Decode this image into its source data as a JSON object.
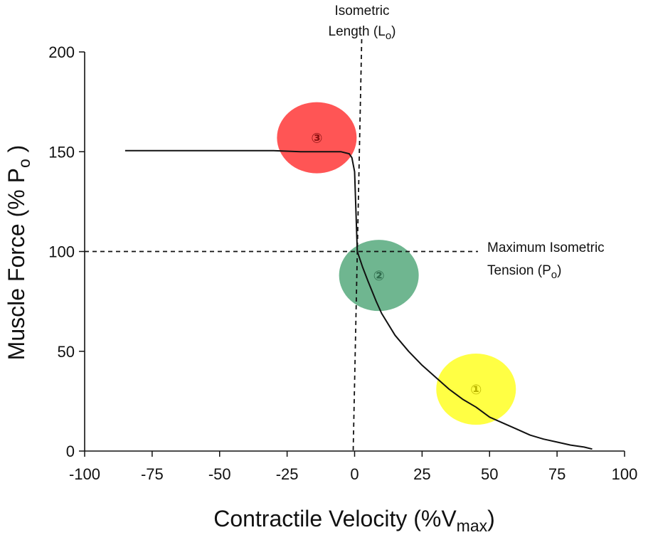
{
  "chart_data": {
    "type": "line",
    "title": "",
    "xlabel": "Contractile Velocity (%V",
    "xlabel_sub": "max",
    "xlabel_end": ")",
    "ylabel": "Muscle Force (% P",
    "ylabel_sub": "o",
    "ylabel_end": " )",
    "xlim": [
      -100,
      100
    ],
    "ylim": [
      0,
      200
    ],
    "xticks": [
      -100,
      -75,
      -50,
      -25,
      0,
      25,
      50,
      75,
      100
    ],
    "yticks": [
      0,
      50,
      100,
      150,
      200
    ],
    "grid": false,
    "series": [
      {
        "x": [
          -85,
          -50,
          -30,
          -20,
          -10,
          -5,
          -2,
          -1,
          0,
          0.5,
          1,
          2,
          3,
          5,
          8,
          10,
          15,
          20,
          25,
          30,
          35,
          40,
          45,
          50,
          55,
          60,
          65,
          70,
          75,
          80,
          85,
          88
        ],
        "y": [
          150.5,
          150.5,
          150.5,
          150,
          150,
          150,
          149,
          147,
          140,
          120,
          100,
          96,
          92,
          85,
          75,
          69,
          58,
          50,
          43,
          37,
          31,
          26,
          22,
          17,
          14,
          11,
          8,
          6,
          4.5,
          3,
          2,
          1
        ]
      }
    ],
    "reference_lines": [
      {
        "orientation": "horizontal",
        "value": 100,
        "label_line1": "Maximum Isometric",
        "label_line2": "Tension (P",
        "label_sub": "o",
        "label_end": ")"
      },
      {
        "orientation": "vertical",
        "value": 0,
        "label_line1": "Isometric",
        "label_line2": "Length (L",
        "label_sub": "o",
        "label_end": ")"
      }
    ],
    "annotations": [
      {
        "label": "①",
        "x": 45,
        "y": 31,
        "color": "#ffff44",
        "text_color": "#b9b400"
      },
      {
        "label": "②",
        "x": 9,
        "y": 88,
        "color": "#6fb690",
        "text_color": "#2f6b4c"
      },
      {
        "label": "③",
        "x": -14,
        "y": 157,
        "color": "#ff5555",
        "text_color": "#8a1010"
      }
    ]
  }
}
